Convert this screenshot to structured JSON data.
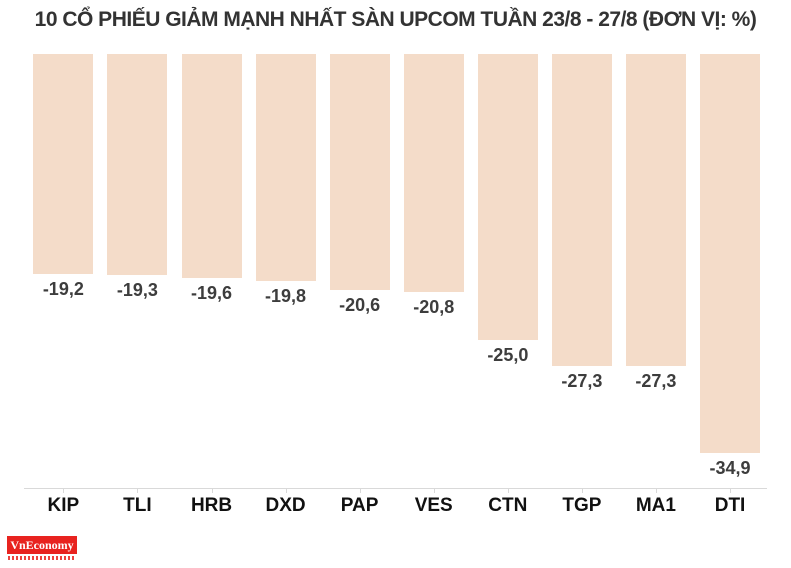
{
  "title": "10 CỔ PHIẾU GIẢM MẠNH NHẤT SÀN UPCOM TUẦN 23/8 - 27/8 (ĐƠN VỊ: %)",
  "chart_data": {
    "type": "bar",
    "orientation": "vertical",
    "title": "10 CỔ PHIẾU GIẢM MẠNH NHẤT SÀN UPCOM TUẦN 23/8 - 27/8 (ĐƠN VỊ: %)",
    "unit": "%",
    "categories": [
      "KIP",
      "TLI",
      "HRB",
      "DXD",
      "PAP",
      "VES",
      "CTN",
      "TGP",
      "MA1",
      "DTI"
    ],
    "values": [
      -19.2,
      -19.3,
      -19.6,
      -19.8,
      -20.6,
      -20.8,
      -25.0,
      -27.3,
      -27.3,
      -34.9
    ],
    "value_labels": [
      "-19,2",
      "-19,3",
      "-19,6",
      "-19,8",
      "-20,6",
      "-20,8",
      "-25,0",
      "-27,3",
      "-27,3",
      "-34,9"
    ],
    "xlabel": "",
    "ylabel": "",
    "ylim": [
      -35,
      0
    ],
    "grid": false,
    "legend": false,
    "bar_color": "#f4dcc9",
    "value_label_color": "#3d3d3d",
    "category_label_color": "#111111",
    "axis_line_color": "#d9d9d9",
    "title_color": "#333333"
  },
  "branding": {
    "logo_text": "VnEconomy",
    "logo_bg_color": "#e8231f",
    "logo_text_color": "#ffffff"
  }
}
